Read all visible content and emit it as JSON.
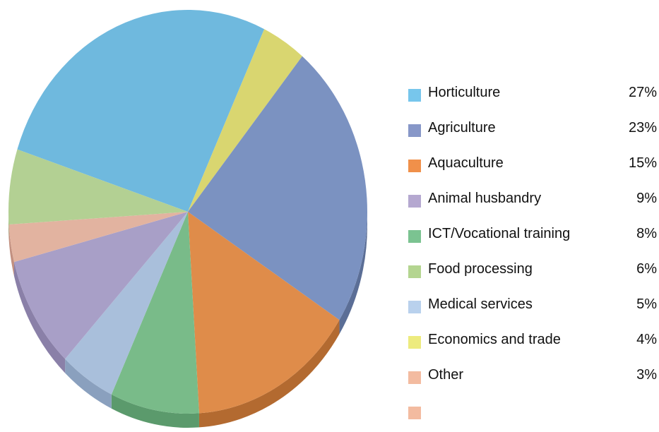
{
  "chart_data": {
    "type": "pie",
    "title": "",
    "legend_position": "right",
    "legend": [
      {
        "label": "Horticulture",
        "value_label": "27%",
        "color": "#77C6EC"
      },
      {
        "label": "Agriculture",
        "value_label": "23%",
        "color": "#8797C8"
      },
      {
        "label": "Aquaculture",
        "value_label": "15%",
        "color": "#F0904A"
      },
      {
        "label": "Animal husbandry",
        "value_label": "9%",
        "color": "#B5A8D0"
      },
      {
        "label": "ICT/Vocational training",
        "value_label": "8%",
        "color": "#7BC391"
      },
      {
        "label": "Food processing",
        "value_label": "6%",
        "color": "#B4D590"
      },
      {
        "label": "Medical services",
        "value_label": "5%",
        "color": "#B9D1ED"
      },
      {
        "label": "Economics and trade",
        "value_label": "4%",
        "color": "#EDEB7E"
      },
      {
        "label": "Other",
        "value_label": "3%",
        "color": "#F3BBA0"
      },
      {
        "label": "",
        "value_label": "",
        "color": "#F3BBA0"
      }
    ],
    "slices": [
      {
        "value": 27,
        "color": "#6FB9DE",
        "side": "#5A9DBE"
      },
      {
        "value": 4,
        "color": "#D9D670",
        "side": "#B3AF50"
      },
      {
        "value": 23,
        "color": "#7B92C1",
        "side": "#5B6E96"
      },
      {
        "value": 15,
        "color": "#DF8C4A",
        "side": "#B36A30"
      },
      {
        "value": 8,
        "color": "#79BB89",
        "side": "#5B9A6C"
      },
      {
        "value": 5,
        "color": "#A9BFDB",
        "side": "#8AA0BE"
      },
      {
        "value": 9,
        "color": "#A89FC7",
        "side": "#8A80A8"
      },
      {
        "value": 3,
        "color": "#E2B3A0",
        "side": "#C29080"
      },
      {
        "value": 6,
        "color": "#B3D093",
        "side": "#93B073"
      }
    ]
  }
}
